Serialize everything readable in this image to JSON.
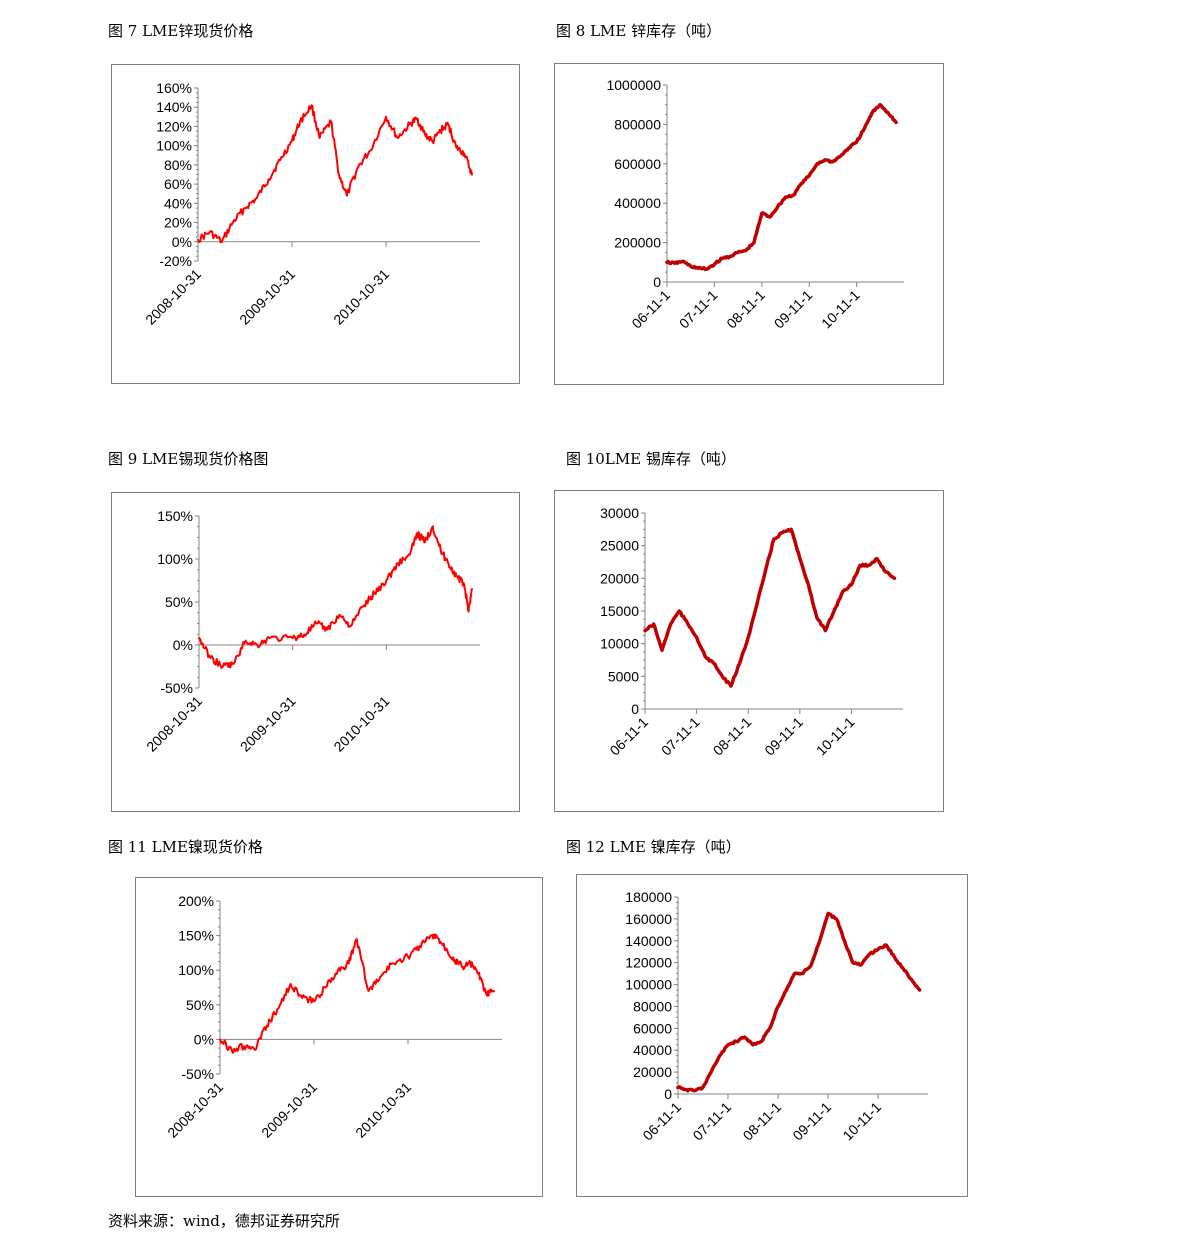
{
  "source_note": "资料来源：wind，德邦证券研究所",
  "charts": [
    {
      "caption": "图  7 LME锌现货价格",
      "chart_data": {
        "type": "line",
        "series": [
          {
            "color": "#ff0000",
            "x": [
              "2008-10-31",
              "2008-12-15",
              "2009-02-01",
              "2009-03-15",
              "2009-05-01",
              "2009-06-15",
              "2009-08-01",
              "2009-09-15",
              "2009-10-31",
              "2009-12-01",
              "2010-01-15",
              "2010-02-15",
              "2010-04-01",
              "2010-05-01",
              "2010-06-01",
              "2010-07-15",
              "2010-08-31",
              "2010-10-31",
              "2010-12-15",
              "2011-01-31",
              "2011-02-28",
              "2011-03-31",
              "2011-04-30",
              "2011-05-31",
              "2011-06-30",
              "2011-07-31",
              "2011-08-31",
              "2011-09-30"
            ],
            "y": [
              2,
              10,
              0,
              20,
              35,
              45,
              65,
              85,
              105,
              125,
              142,
              108,
              125,
              70,
              48,
              78,
              95,
              130,
              108,
              122,
              128,
              112,
              104,
              116,
              122,
              98,
              92,
              70
            ]
          }
        ],
        "x_ticks": [
          "2008-10-31",
          "2009-10-31",
          "2010-10-31"
        ],
        "y_ticks": [
          "160%",
          "140%",
          "120%",
          "100%",
          "80%",
          "60%",
          "40%",
          "20%",
          "0%",
          "-20%"
        ],
        "y_unit": "percent",
        "ylim": [
          -20,
          160
        ],
        "xlim": [
          "2008-10-31",
          "2011-10-31"
        ],
        "line_style": "thin",
        "grid": false,
        "legend": "none"
      }
    },
    {
      "caption": "图  8 LME 锌库存（吨）",
      "chart_data": {
        "type": "line",
        "series": [
          {
            "color": "#c00000",
            "x": [
              "2006-11-01",
              "2007-01-01",
              "2007-03-01",
              "2007-05-01",
              "2007-07-01",
              "2007-09-01",
              "2007-11-01",
              "2008-01-01",
              "2008-03-01",
              "2008-05-01",
              "2008-07-01",
              "2008-09-01",
              "2008-11-01",
              "2009-01-01",
              "2009-03-01",
              "2009-05-01",
              "2009-07-01",
              "2009-09-01",
              "2009-11-01",
              "2010-01-01",
              "2010-03-01",
              "2010-05-01",
              "2010-07-01",
              "2010-09-01",
              "2010-11-01",
              "2011-01-01",
              "2011-03-01",
              "2011-05-01",
              "2011-07-01",
              "2011-09-01"
            ],
            "y": [
              100000,
              95000,
              105000,
              80000,
              70000,
              65000,
              90000,
              120000,
              130000,
              150000,
              160000,
              200000,
              350000,
              330000,
              380000,
              430000,
              440000,
              500000,
              540000,
              600000,
              620000,
              610000,
              640000,
              680000,
              710000,
              780000,
              860000,
              900000,
              860000,
              810000
            ]
          }
        ],
        "x_ticks": [
          "06-11-1",
          "07-11-1",
          "08-11-1",
          "09-11-1",
          "10-11-1"
        ],
        "y_ticks": [
          "1000000",
          "800000",
          "600000",
          "400000",
          "200000",
          "0"
        ],
        "ylim": [
          0,
          1000000
        ],
        "xlim": [
          "2006-11-01",
          "2011-11-01"
        ],
        "line_style": "thick",
        "grid": false,
        "legend": "none"
      }
    },
    {
      "caption": "图  9 LME锡现货价格图",
      "chart_data": {
        "type": "line",
        "series": [
          {
            "color": "#ff0000",
            "x": [
              "2008-10-31",
              "2008-12-15",
              "2009-02-01",
              "2009-03-15",
              "2009-05-01",
              "2009-06-15",
              "2009-08-01",
              "2009-10-31",
              "2009-12-15",
              "2010-02-01",
              "2010-03-15",
              "2010-05-01",
              "2010-06-15",
              "2010-08-01",
              "2010-09-15",
              "2010-10-31",
              "2010-12-15",
              "2011-01-31",
              "2011-02-28",
              "2011-03-31",
              "2011-04-30",
              "2011-05-31",
              "2011-06-30",
              "2011-07-31",
              "2011-08-31",
              "2011-09-15",
              "2011-09-30"
            ],
            "y": [
              8,
              -15,
              -25,
              -22,
              5,
              0,
              8,
              8,
              12,
              25,
              18,
              35,
              22,
              45,
              60,
              75,
              95,
              105,
              130,
              120,
              138,
              110,
              95,
              80,
              70,
              40,
              65
            ]
          }
        ],
        "x_ticks": [
          "2008-10-31",
          "2009-10-31",
          "2010-10-31"
        ],
        "y_ticks": [
          "150%",
          "100%",
          "50%",
          "0%",
          "-50%"
        ],
        "y_unit": "percent",
        "ylim": [
          -50,
          150
        ],
        "xlim": [
          "2008-10-31",
          "2011-10-31"
        ],
        "line_style": "thin",
        "grid": false,
        "legend": "none"
      }
    },
    {
      "caption": "图  10LME 锡库存（吨）",
      "chart_data": {
        "type": "line",
        "series": [
          {
            "color": "#c00000",
            "x": [
              "2006-11-01",
              "2007-01-01",
              "2007-03-01",
              "2007-05-01",
              "2007-07-01",
              "2007-09-01",
              "2007-11-01",
              "2008-01-01",
              "2008-03-01",
              "2008-05-01",
              "2008-07-01",
              "2008-09-01",
              "2008-11-01",
              "2009-01-01",
              "2009-03-01",
              "2009-05-01",
              "2009-07-01",
              "2009-09-01",
              "2009-11-01",
              "2010-01-01",
              "2010-03-01",
              "2010-05-01",
              "2010-07-01",
              "2010-09-01",
              "2010-11-01",
              "2011-01-01",
              "2011-03-01",
              "2011-05-01",
              "2011-07-01",
              "2011-09-01"
            ],
            "y": [
              12000,
              13000,
              9000,
              13000,
              15000,
              13000,
              11000,
              8000,
              7000,
              5000,
              3500,
              7000,
              11000,
              16000,
              21000,
              26000,
              27000,
              27500,
              23000,
              19000,
              14000,
              12000,
              15000,
              18000,
              19000,
              22000,
              22000,
              23000,
              21000,
              20000
            ]
          }
        ],
        "x_ticks": [
          "06-11-1",
          "07-11-1",
          "08-11-1",
          "09-11-1",
          "10-11-1"
        ],
        "y_ticks": [
          "30000",
          "25000",
          "20000",
          "15000",
          "10000",
          "5000",
          "0"
        ],
        "ylim": [
          0,
          30000
        ],
        "xlim": [
          "2006-11-01",
          "2011-11-01"
        ],
        "line_style": "thick",
        "grid": false,
        "legend": "none"
      }
    },
    {
      "caption": "图  11 LME镍现货价格",
      "chart_data": {
        "type": "line",
        "series": [
          {
            "color": "#ff0000",
            "x": [
              "2008-10-31",
              "2008-12-15",
              "2009-02-01",
              "2009-03-15",
              "2009-05-01",
              "2009-06-15",
              "2009-08-01",
              "2009-09-15",
              "2009-10-31",
              "2009-12-15",
              "2010-02-01",
              "2010-03-15",
              "2010-04-15",
              "2010-05-31",
              "2010-07-15",
              "2010-08-31",
              "2010-10-31",
              "2010-12-15",
              "2011-01-31",
              "2011-02-28",
              "2011-03-31",
              "2011-04-30",
              "2011-05-31",
              "2011-06-30",
              "2011-07-31",
              "2011-08-31",
              "2011-09-30"
            ],
            "y": [
              0,
              -15,
              -10,
              -15,
              20,
              45,
              80,
              60,
              55,
              75,
              100,
              110,
              145,
              70,
              90,
              110,
              120,
              135,
              150,
              145,
              130,
              115,
              105,
              110,
              95,
              65,
              70
            ]
          }
        ],
        "x_ticks": [
          "2008-10-31",
          "2009-10-31",
          "2010-10-31"
        ],
        "y_ticks": [
          "200%",
          "150%",
          "100%",
          "50%",
          "0%",
          "-50%"
        ],
        "y_unit": "percent",
        "ylim": [
          -50,
          200
        ],
        "xlim": [
          "2008-10-31",
          "2011-10-31"
        ],
        "line_style": "thin",
        "grid": false,
        "legend": "none"
      }
    },
    {
      "caption": "图  12 LME 镍库存（吨）",
      "chart_data": {
        "type": "line",
        "series": [
          {
            "color": "#c00000",
            "x": [
              "2006-11-01",
              "2007-01-01",
              "2007-03-01",
              "2007-05-01",
              "2007-07-01",
              "2007-09-01",
              "2007-11-01",
              "2008-01-01",
              "2008-03-01",
              "2008-05-01",
              "2008-07-01",
              "2008-09-01",
              "2008-11-01",
              "2009-01-01",
              "2009-03-01",
              "2009-05-01",
              "2009-07-01",
              "2009-09-01",
              "2009-11-01",
              "2010-01-01",
              "2010-03-01",
              "2010-05-01",
              "2010-07-01",
              "2010-09-01",
              "2010-11-01",
              "2011-01-01",
              "2011-03-01",
              "2011-05-01",
              "2011-07-01",
              "2011-09-01"
            ],
            "y": [
              6000,
              4000,
              3000,
              6000,
              20000,
              35000,
              45000,
              48000,
              52000,
              45000,
              48000,
              60000,
              80000,
              95000,
              110000,
              110000,
              118000,
              140000,
              165000,
              160000,
              140000,
              120000,
              118000,
              128000,
              132000,
              136000,
              125000,
              115000,
              105000,
              95000
            ]
          }
        ],
        "x_ticks": [
          "06-11-1",
          "07-11-1",
          "08-11-1",
          "09-11-1",
          "10-11-1"
        ],
        "y_ticks": [
          "180000",
          "160000",
          "140000",
          "120000",
          "100000",
          "80000",
          "60000",
          "40000",
          "20000",
          "0"
        ],
        "ylim": [
          0,
          180000
        ],
        "xlim": [
          "2006-11-01",
          "2011-11-01"
        ],
        "line_style": "thick",
        "grid": false,
        "legend": "none"
      }
    }
  ]
}
